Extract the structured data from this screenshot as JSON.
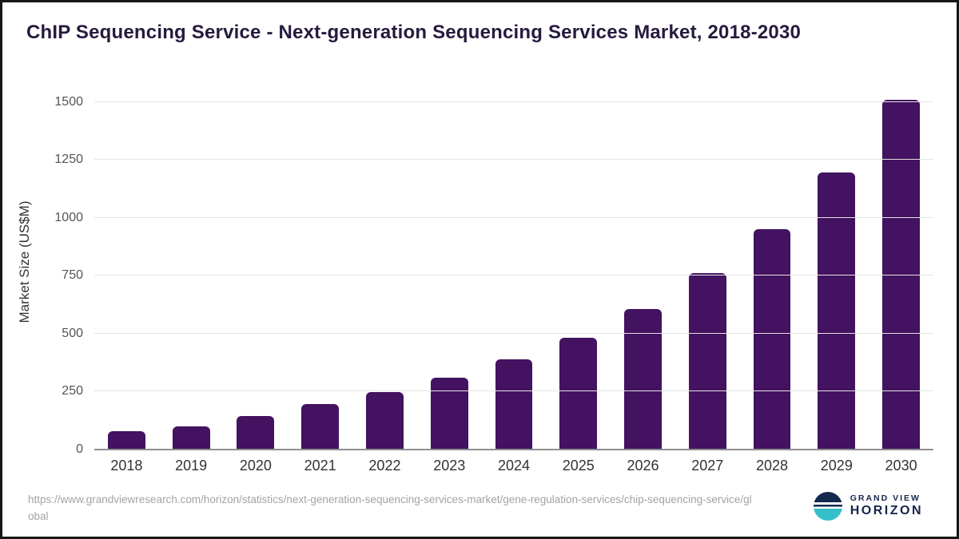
{
  "header": {
    "title": "ChIP Sequencing Service - Next-generation Sequencing Services Market, 2018-2030"
  },
  "chart_data": {
    "type": "bar",
    "title": "ChIP Sequencing Service - Next-generation Sequencing Services Market, 2018-2030",
    "categories": [
      "2018",
      "2019",
      "2020",
      "2021",
      "2022",
      "2023",
      "2024",
      "2025",
      "2026",
      "2027",
      "2028",
      "2029",
      "2030"
    ],
    "values": [
      80,
      100,
      145,
      198,
      248,
      310,
      388,
      482,
      605,
      760,
      950,
      1195,
      1510
    ],
    "xlabel": "",
    "ylabel": "Market Size (US$M)",
    "ylim": [
      0,
      1550
    ],
    "yticks": [
      0,
      250,
      500,
      750,
      1000,
      1250,
      1500
    ],
    "bar_color": "#431260",
    "grid": true,
    "legend_position": "none"
  },
  "footer": {
    "source_url": "https://www.grandviewresearch.com/horizon/statistics/next-generation-sequencing-services-market/gene-regulation-services/chip-sequencing-service/global",
    "logo": {
      "brand_top": "GRAND VIEW",
      "brand_bottom": "HORIZON",
      "icon": "horizon-circle-icon",
      "accent_color": "#35bfc9",
      "navy_color": "#15254a"
    }
  }
}
